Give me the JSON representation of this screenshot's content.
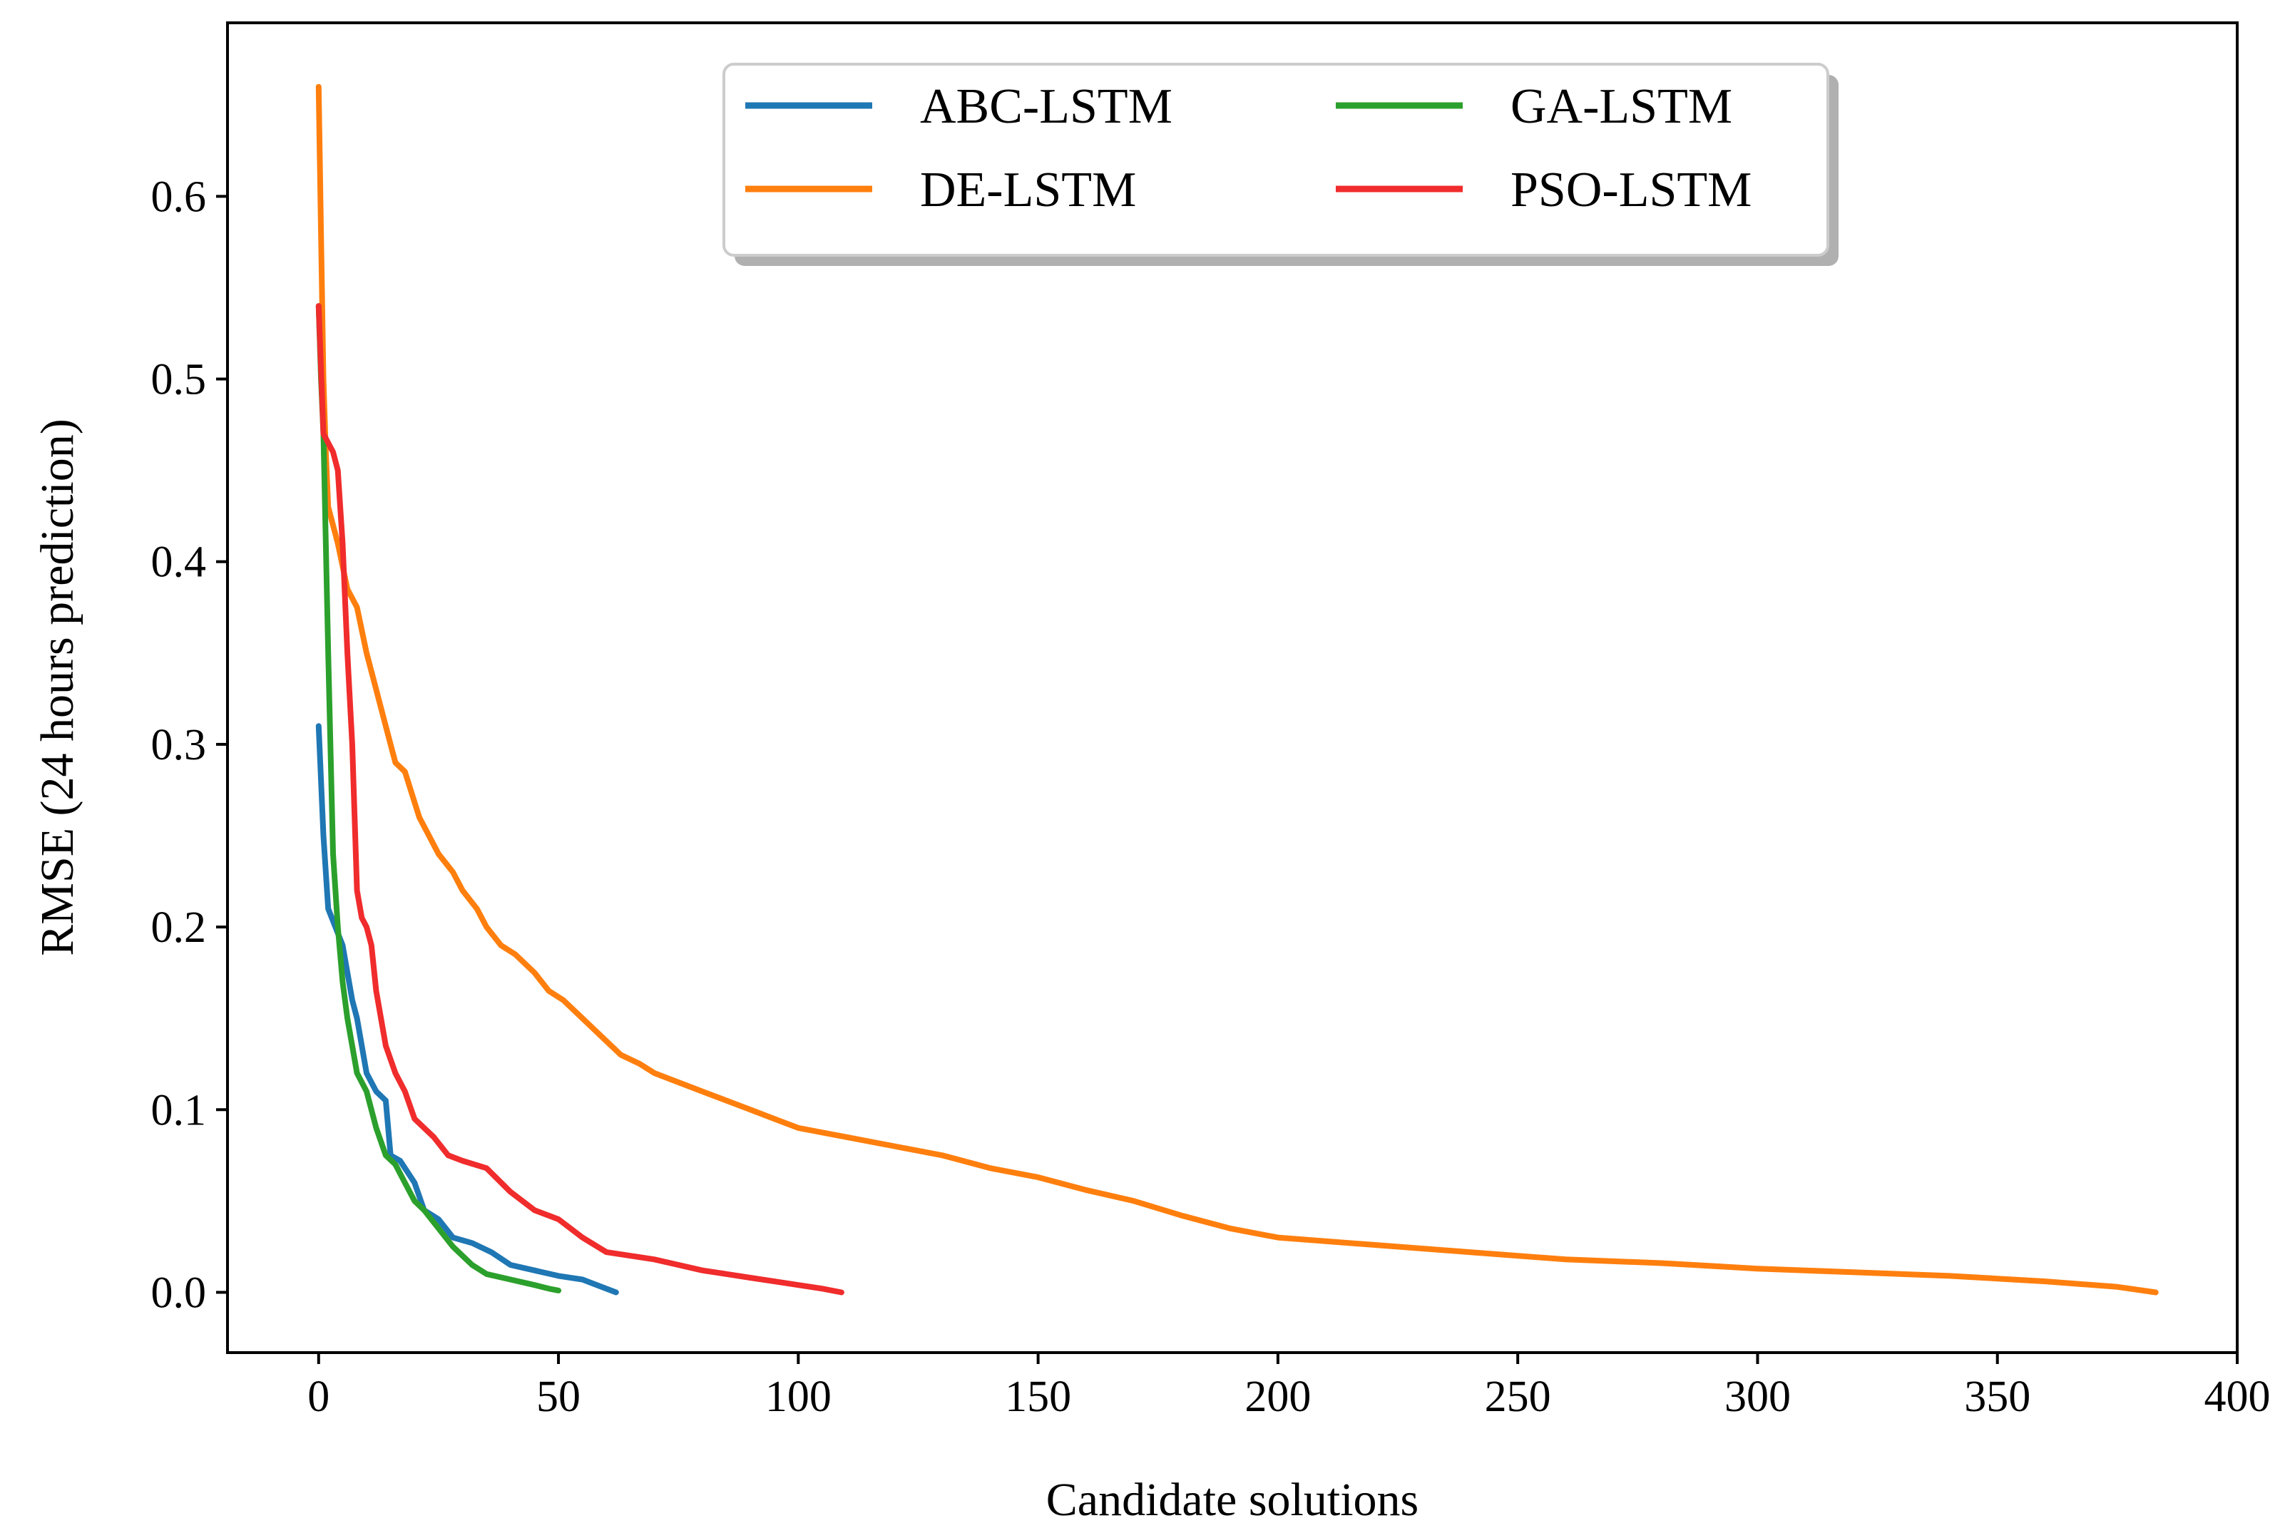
{
  "chart_data": {
    "type": "line",
    "title": "",
    "xlabel": "Candidate solutions",
    "ylabel": "RMSE (24 hours prediction)",
    "xlim": [
      -19,
      400
    ],
    "ylim": [
      -0.033,
      0.695
    ],
    "xticks": [
      0,
      50,
      100,
      150,
      200,
      250,
      300,
      350,
      400
    ],
    "xtick_labels": [
      "0",
      "50",
      "100",
      "150",
      "200",
      "250",
      "300",
      "350",
      "400"
    ],
    "yticks": [
      0.0,
      0.1,
      0.2,
      0.3,
      0.4,
      0.5,
      0.6
    ],
    "ytick_labels": [
      "0.0",
      "0.1",
      "0.2",
      "0.3",
      "0.4",
      "0.5",
      "0.6"
    ],
    "grid": false,
    "legend_position": "upper-center",
    "series": [
      {
        "name": "ABC-LSTM",
        "color": "#1f77b4",
        "x": [
          0,
          1,
          2,
          5,
          7,
          8,
          10,
          12,
          14,
          15,
          17,
          20,
          22,
          25,
          28,
          32,
          36,
          40,
          45,
          50,
          55,
          58,
          62
        ],
        "y": [
          0.31,
          0.25,
          0.21,
          0.19,
          0.16,
          0.15,
          0.12,
          0.11,
          0.105,
          0.075,
          0.072,
          0.06,
          0.045,
          0.04,
          0.03,
          0.027,
          0.022,
          0.015,
          0.012,
          0.009,
          0.007,
          0.004,
          0.0
        ]
      },
      {
        "name": "DE-LSTM",
        "color": "#ff7f0e",
        "x": [
          0,
          0.5,
          1,
          1.5,
          2,
          4,
          6,
          8,
          10,
          12,
          14,
          16,
          18,
          21,
          23,
          25,
          28,
          30,
          33,
          35,
          38,
          41,
          45,
          48,
          51,
          55,
          59,
          63,
          67,
          70,
          75,
          80,
          85,
          90,
          95,
          100,
          110,
          120,
          130,
          140,
          150,
          160,
          170,
          180,
          190,
          200,
          220,
          240,
          260,
          280,
          300,
          320,
          340,
          360,
          375,
          383
        ],
        "y": [
          0.66,
          0.58,
          0.5,
          0.46,
          0.43,
          0.41,
          0.385,
          0.375,
          0.35,
          0.33,
          0.31,
          0.29,
          0.285,
          0.26,
          0.25,
          0.24,
          0.23,
          0.22,
          0.21,
          0.2,
          0.19,
          0.185,
          0.175,
          0.165,
          0.16,
          0.15,
          0.14,
          0.13,
          0.125,
          0.12,
          0.115,
          0.11,
          0.105,
          0.1,
          0.095,
          0.09,
          0.085,
          0.08,
          0.075,
          0.068,
          0.063,
          0.056,
          0.05,
          0.042,
          0.035,
          0.03,
          0.026,
          0.022,
          0.018,
          0.016,
          0.013,
          0.011,
          0.009,
          0.006,
          0.003,
          0.0
        ]
      },
      {
        "name": "GA-LSTM",
        "color": "#2ca02c",
        "x": [
          0,
          0.5,
          1,
          2,
          3,
          4,
          5,
          6,
          8,
          10,
          12,
          14,
          16,
          18,
          20,
          22,
          25,
          28,
          32,
          35,
          40,
          45,
          48,
          50
        ],
        "y": [
          0.54,
          0.5,
          0.47,
          0.35,
          0.24,
          0.2,
          0.17,
          0.15,
          0.12,
          0.11,
          0.09,
          0.075,
          0.07,
          0.06,
          0.05,
          0.045,
          0.035,
          0.025,
          0.015,
          0.01,
          0.007,
          0.004,
          0.002,
          0.001
        ]
      },
      {
        "name": "PSO-LSTM",
        "color": "#f02c2c",
        "x": [
          0,
          1,
          2,
          3,
          4,
          5,
          6,
          7,
          8,
          9,
          10,
          11,
          12,
          14,
          16,
          18,
          20,
          22,
          24,
          27,
          30,
          35,
          40,
          45,
          50,
          55,
          60,
          65,
          70,
          75,
          80,
          85,
          90,
          95,
          100,
          105,
          109
        ],
        "y": [
          0.54,
          0.47,
          0.465,
          0.46,
          0.45,
          0.41,
          0.35,
          0.3,
          0.22,
          0.205,
          0.2,
          0.19,
          0.165,
          0.135,
          0.12,
          0.11,
          0.095,
          0.09,
          0.085,
          0.075,
          0.072,
          0.068,
          0.055,
          0.045,
          0.04,
          0.03,
          0.022,
          0.02,
          0.018,
          0.015,
          0.012,
          0.01,
          0.008,
          0.006,
          0.004,
          0.002,
          0.0
        ]
      }
    ]
  }
}
